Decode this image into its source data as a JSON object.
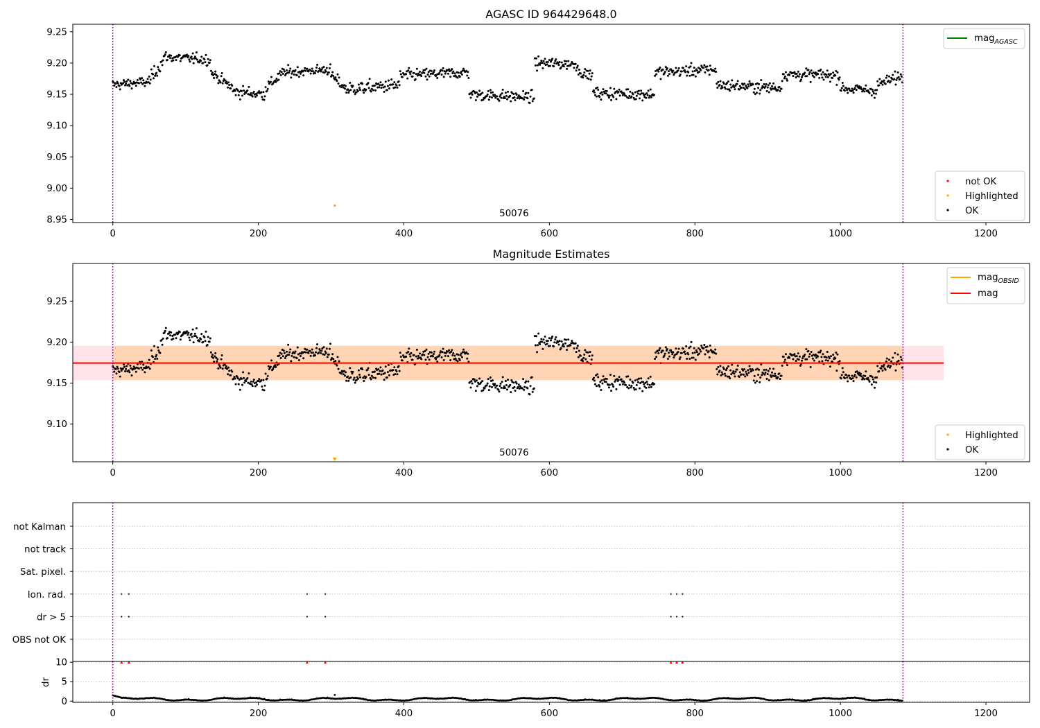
{
  "chart_data": [
    {
      "name": "agasc-panel",
      "type": "scatter",
      "title": "AGASC ID 964429648.0",
      "xlim": [
        -55,
        1260
      ],
      "ylim": [
        8.945,
        9.262
      ],
      "xticks": [
        0,
        200,
        400,
        600,
        800,
        1000,
        1200
      ],
      "yticks": [
        8.95,
        9.0,
        9.05,
        9.1,
        9.15,
        9.2,
        9.25
      ],
      "ytick_labels": [
        "8.95",
        "9.00",
        "9.05",
        "9.10",
        "9.15",
        "9.20",
        "9.25"
      ],
      "obsid_label": "50076",
      "obsid_x": 540,
      "obs_bounds": [
        0,
        1086
      ],
      "line_legend": [
        {
          "label": "mag",
          "sub": "AGASC",
          "color": "#008000"
        }
      ],
      "point_legend": [
        {
          "label": "not OK",
          "color": "#ff0000"
        },
        {
          "label": "Highlighted",
          "color": "#ffa500"
        },
        {
          "label": "OK",
          "color": "#000000"
        }
      ],
      "highlighted": [
        {
          "x": 305,
          "y": 8.972
        }
      ],
      "segments": [
        {
          "x0": 0,
          "x1": 50,
          "y0": 9.165,
          "y1": 9.17,
          "noise": 0.007
        },
        {
          "x0": 50,
          "x1": 70,
          "y0": 9.172,
          "y1": 9.205,
          "noise": 0.009
        },
        {
          "x0": 70,
          "x1": 135,
          "y0": 9.21,
          "y1": 9.205,
          "noise": 0.007
        },
        {
          "x0": 135,
          "x1": 165,
          "y0": 9.185,
          "y1": 9.16,
          "noise": 0.007
        },
        {
          "x0": 165,
          "x1": 210,
          "y0": 9.155,
          "y1": 9.15,
          "noise": 0.008
        },
        {
          "x0": 210,
          "x1": 235,
          "y0": 9.16,
          "y1": 9.185,
          "noise": 0.008
        },
        {
          "x0": 235,
          "x1": 300,
          "y0": 9.185,
          "y1": 9.19,
          "noise": 0.007
        },
        {
          "x0": 300,
          "x1": 320,
          "y0": 9.18,
          "y1": 9.16,
          "noise": 0.008
        },
        {
          "x0": 320,
          "x1": 395,
          "y0": 9.158,
          "y1": 9.165,
          "noise": 0.009
        },
        {
          "x0": 395,
          "x1": 490,
          "y0": 9.18,
          "y1": 9.185,
          "noise": 0.008
        },
        {
          "x0": 490,
          "x1": 580,
          "y0": 9.15,
          "y1": 9.145,
          "noise": 0.008
        },
        {
          "x0": 580,
          "x1": 640,
          "y0": 9.2,
          "y1": 9.198,
          "noise": 0.008
        },
        {
          "x0": 640,
          "x1": 660,
          "y0": 9.185,
          "y1": 9.18,
          "noise": 0.006
        },
        {
          "x0": 660,
          "x1": 745,
          "y0": 9.152,
          "y1": 9.15,
          "noise": 0.008
        },
        {
          "x0": 745,
          "x1": 830,
          "y0": 9.185,
          "y1": 9.19,
          "noise": 0.008
        },
        {
          "x0": 830,
          "x1": 920,
          "y0": 9.165,
          "y1": 9.16,
          "noise": 0.008
        },
        {
          "x0": 920,
          "x1": 1000,
          "y0": 9.182,
          "y1": 9.18,
          "noise": 0.008
        },
        {
          "x0": 1000,
          "x1": 1050,
          "y0": 9.16,
          "y1": 9.155,
          "noise": 0.008
        },
        {
          "x0": 1050,
          "x1": 1086,
          "y0": 9.165,
          "y1": 9.18,
          "noise": 0.008
        }
      ]
    },
    {
      "name": "magnitude-panel",
      "type": "scatter",
      "title": "Magnitude Estimates",
      "xlim": [
        -55,
        1260
      ],
      "ylim": [
        9.054,
        9.296
      ],
      "xticks": [
        0,
        200,
        400,
        600,
        800,
        1000,
        1200
      ],
      "yticks": [
        9.1,
        9.15,
        9.2,
        9.25
      ],
      "ytick_labels": [
        "9.10",
        "9.15",
        "9.20",
        "9.25"
      ],
      "obsid_label": "50076",
      "obsid_x": 540,
      "obs_bounds": [
        0,
        1086
      ],
      "mean_mag": 9.1745,
      "mean_band": [
        9.1535,
        9.1955
      ],
      "band_xlim": [
        -55,
        1142
      ],
      "line_legend": [
        {
          "label": "mag",
          "sub": "OBSID",
          "color": "#ffa500"
        },
        {
          "label": "mag",
          "sub": "",
          "color": "#ff0000"
        }
      ],
      "point_legend": [
        {
          "label": "Highlighted",
          "color": "#ffa500"
        },
        {
          "label": "OK",
          "color": "#000000"
        }
      ],
      "highlighted_marker_x": 305
    },
    {
      "name": "flags-panel",
      "type": "scatter",
      "xlim": [
        -55,
        1260
      ],
      "xticks": [
        0,
        200,
        400,
        600,
        800,
        1000,
        1200
      ],
      "categories": [
        "not Kalman",
        "not track",
        "Sat. pixel.",
        "Ion. rad.",
        "dr > 5",
        "OBS not OK"
      ],
      "flags": {
        "Ion. rad.": [
          12,
          22,
          267,
          292,
          767,
          775,
          783
        ],
        "dr > 5": [
          12,
          22,
          267,
          292,
          767,
          775,
          783
        ]
      },
      "obs_bounds": [
        0,
        1086
      ]
    },
    {
      "name": "dr-panel",
      "type": "scatter",
      "ylabel": "dr",
      "xlim": [
        -55,
        1260
      ],
      "ylim": [
        -0.3,
        10.2
      ],
      "xticks": [
        0,
        200,
        400,
        600,
        800,
        1000,
        1200
      ],
      "xtick_labels": [
        "0",
        "200",
        "400",
        "600",
        "800",
        "1000",
        "1200"
      ],
      "yticks": [
        0,
        5,
        10
      ],
      "ytick_labels": [
        "0",
        "5",
        "10"
      ],
      "clipped_x": [
        12,
        22,
        267,
        292,
        767,
        775,
        783
      ],
      "obs_bounds": [
        0,
        1086
      ]
    }
  ]
}
